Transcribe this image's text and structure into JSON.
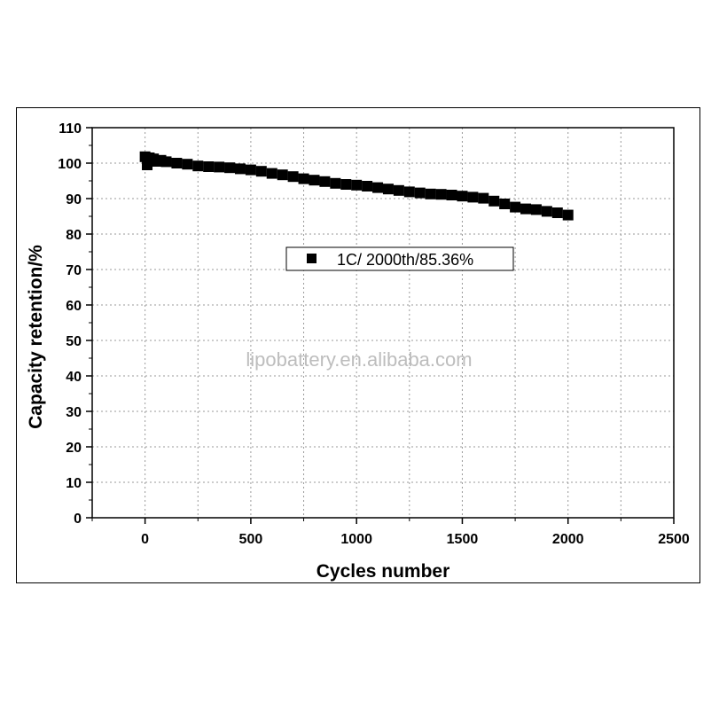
{
  "chart_data": {
    "type": "scatter",
    "title": "",
    "xlabel": "Cycles number",
    "ylabel": "Capacity retention/%",
    "xlim": [
      -250,
      2500
    ],
    "ylim": [
      0,
      110
    ],
    "xticks": [
      0,
      500,
      1000,
      1500,
      2000,
      2500
    ],
    "yticks": [
      0,
      10,
      20,
      30,
      40,
      50,
      60,
      70,
      80,
      90,
      100,
      110
    ],
    "grid": true,
    "legend_position": "upper-center",
    "series": [
      {
        "name": "1C/ 2000th/85.36%",
        "marker": "square",
        "color": "#000000",
        "x": [
          0,
          10,
          20,
          30,
          40,
          50,
          75,
          100,
          150,
          200,
          250,
          300,
          350,
          400,
          450,
          500,
          550,
          600,
          650,
          700,
          750,
          800,
          850,
          900,
          950,
          1000,
          1050,
          1100,
          1150,
          1200,
          1250,
          1300,
          1350,
          1400,
          1450,
          1500,
          1550,
          1600,
          1650,
          1700,
          1750,
          1800,
          1850,
          1900,
          1950,
          2000
        ],
        "y": [
          101.8,
          99.5,
          101.5,
          100.8,
          101.2,
          100.5,
          100.8,
          100.4,
          100.0,
          99.7,
          99.2,
          99.0,
          98.9,
          98.7,
          98.4,
          98.1,
          97.7,
          97.1,
          96.7,
          96.2,
          95.6,
          95.2,
          94.8,
          94.3,
          94.0,
          93.8,
          93.5,
          93.1,
          92.7,
          92.3,
          91.9,
          91.6,
          91.3,
          91.2,
          91.0,
          90.7,
          90.4,
          90.1,
          89.3,
          88.5,
          87.6,
          87.1,
          86.9,
          86.4,
          86.0,
          85.36
        ]
      }
    ],
    "annotations": [
      "lipobattery.en.alibaba.com"
    ]
  }
}
